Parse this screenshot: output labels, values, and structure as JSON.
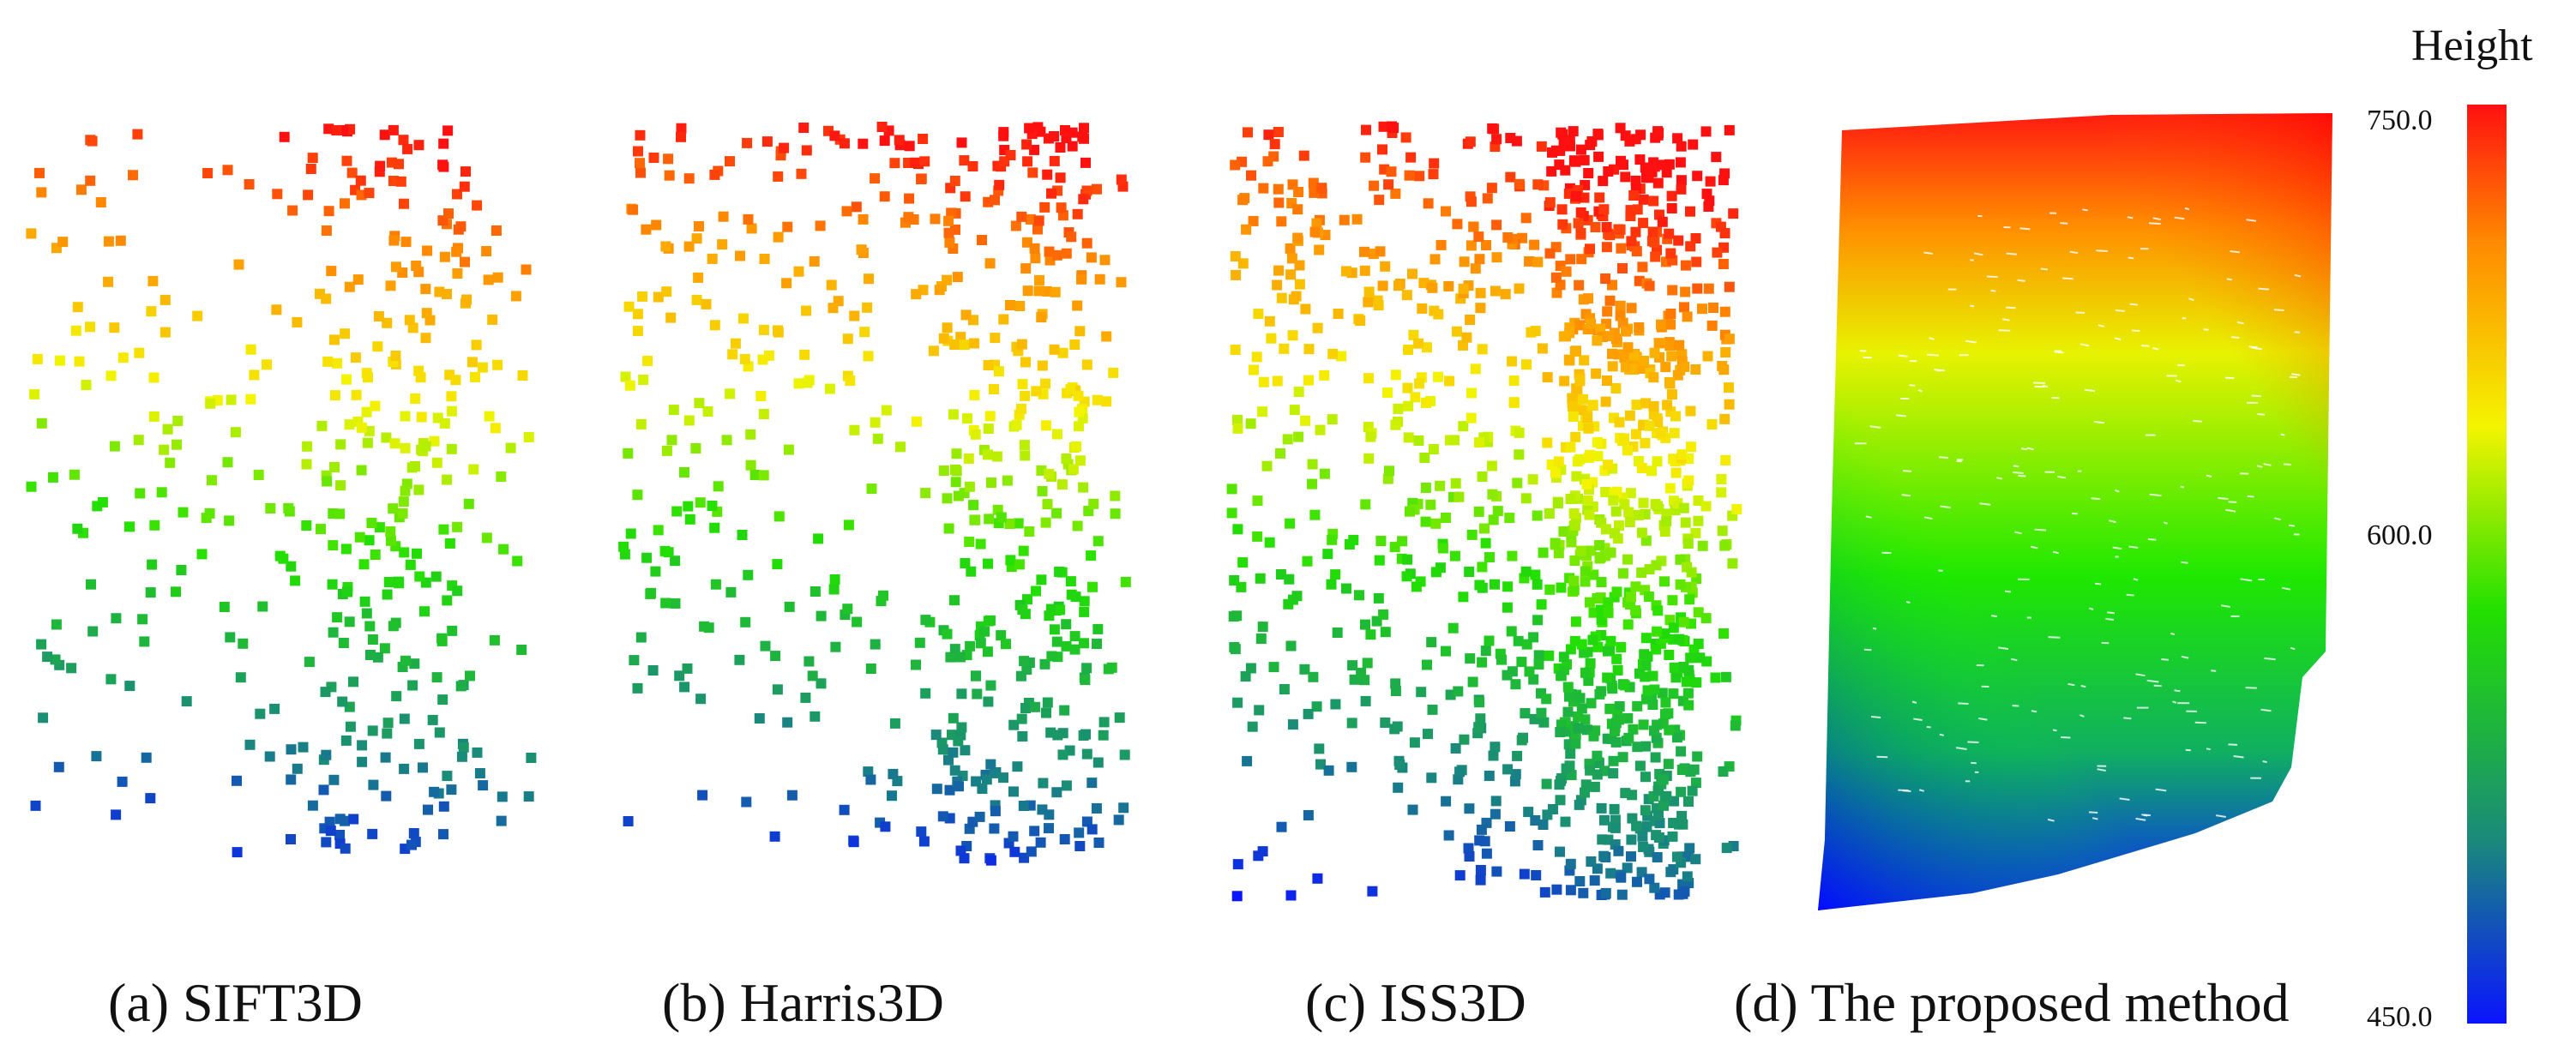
{
  "figure": {
    "panels": [
      {
        "id": "a",
        "caption": "(a) SIFT3D",
        "points": 420
      },
      {
        "id": "b",
        "caption": "(b) Harris3D",
        "points": 640
      },
      {
        "id": "c",
        "caption": "(c) ISS3D",
        "points": 1300
      },
      {
        "id": "d",
        "caption": "(d) The proposed method"
      }
    ],
    "colorbar": {
      "title": "Height",
      "max_label": "750.0",
      "mid_label": "600.0",
      "min_label": "450.0",
      "range": [
        450.0,
        750.0
      ],
      "colormap": [
        "#0a14ff",
        "#1a8a7a",
        "#22e000",
        "#f4f400",
        "#ff8a00",
        "#ff1010"
      ]
    }
  }
}
